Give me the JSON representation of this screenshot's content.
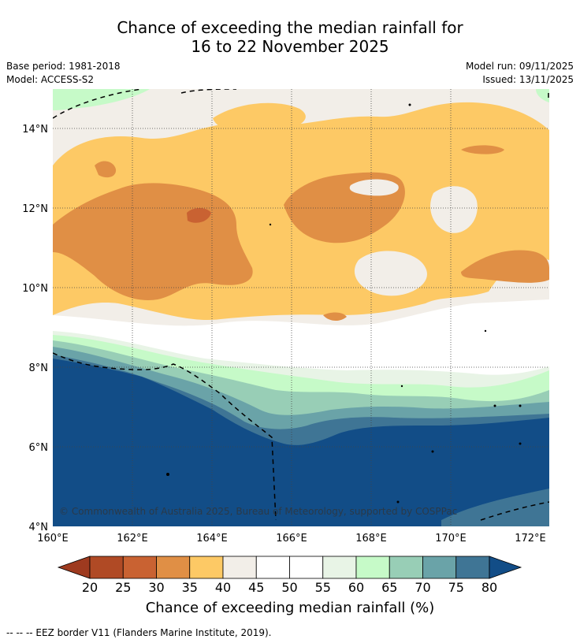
{
  "title": {
    "line1": "Chance of exceeding the median rainfall for",
    "line2": "16 to 22 November 2025"
  },
  "meta": {
    "base_period": "Base period: 1981-2018",
    "model": "Model: ACCESS-S2",
    "model_run": "Model run: 09/11/2025",
    "issued": "Issued: 13/11/2025"
  },
  "map": {
    "lon_ticks": [
      "160°E",
      "162°E",
      "164°E",
      "166°E",
      "168°E",
      "170°E",
      "172°E"
    ],
    "lat_ticks": [
      "14°N",
      "12°N",
      "10°N",
      "8°N",
      "6°N",
      "4°N"
    ],
    "copyright": "© Commonwealth of Australia 2025, Bureau of Meteorology, supported by COSPPac"
  },
  "colorbar": {
    "label": "Chance of exceeding median rainfall (%)",
    "ticks": [
      "20",
      "25",
      "30",
      "35",
      "40",
      "45",
      "50",
      "55",
      "60",
      "65",
      "70",
      "75",
      "80"
    ],
    "colors": [
      "#9e3a1f",
      "#b04a25",
      "#c96232",
      "#e08f45",
      "#fdc965",
      "#f2eee8",
      "#ffffff",
      "#ffffff",
      "#e8f4e6",
      "#c6fac8",
      "#98ceb6",
      "#6aa3a8",
      "#3f7595",
      "#124d87"
    ]
  },
  "footer": "--  --  -- EEZ border V11 (Flanders Marine Institute, 2019)."
}
